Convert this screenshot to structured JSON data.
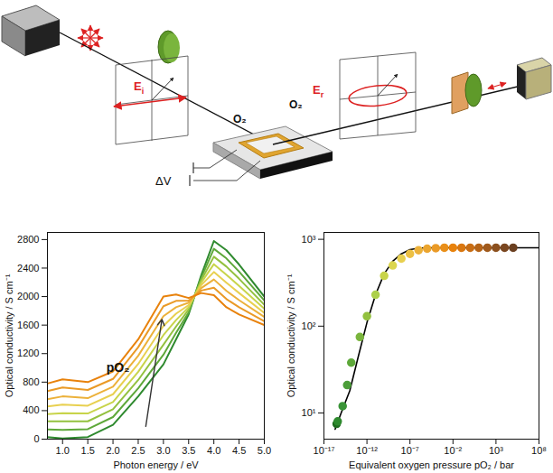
{
  "diagram": {
    "gas": [
      "O₂",
      "O₂"
    ],
    "voltage": "ΔV",
    "incident_field": {
      "text": "E",
      "subscript": "i"
    },
    "reflected_field": {
      "text": "E",
      "subscript": "r"
    }
  },
  "chart_data": [
    {
      "type": "line",
      "x_label": "Photon energy / eV",
      "y_label": "Optical conductivity / S cm⁻¹",
      "x": [
        0.7,
        1.0,
        1.5,
        2.0,
        2.5,
        3.0,
        3.25,
        3.5,
        3.75,
        4.0,
        4.25,
        4.5,
        5.0
      ],
      "series": [
        {
          "color": "#2f8a2f",
          "values": [
            30,
            10,
            30,
            200,
            600,
            1050,
            1400,
            1750,
            2300,
            2780,
            2650,
            2450,
            2000
          ]
        },
        {
          "color": "#5ea83a",
          "values": [
            135,
            130,
            140,
            310,
            715,
            1185,
            1490,
            1780,
            2265,
            2670,
            2535,
            2350,
            1945
          ]
        },
        {
          "color": "#93c13f",
          "values": [
            250,
            250,
            250,
            420,
            830,
            1325,
            1580,
            1820,
            2230,
            2560,
            2420,
            2250,
            1885
          ]
        },
        {
          "color": "#c8d44a",
          "values": [
            350,
            365,
            360,
            520,
            945,
            1460,
            1670,
            1850,
            2195,
            2455,
            2305,
            2150,
            1830
          ]
        },
        {
          "color": "#e8d050",
          "values": [
            460,
            485,
            470,
            630,
            1055,
            1590,
            1760,
            1880,
            2160,
            2345,
            2195,
            2050,
            1770
          ]
        },
        {
          "color": "#ecb13a",
          "values": [
            560,
            600,
            575,
            735,
            1170,
            1725,
            1850,
            1915,
            2120,
            2240,
            2080,
            1950,
            1715
          ]
        },
        {
          "color": "#ea9a26",
          "values": [
            675,
            725,
            690,
            845,
            1290,
            1865,
            1940,
            1945,
            2085,
            2125,
            1965,
            1850,
            1655
          ]
        },
        {
          "color": "#e8820c",
          "values": [
            780,
            840,
            800,
            950,
            1400,
            2000,
            2030,
            1980,
            2050,
            2020,
            1850,
            1750,
            1600
          ]
        }
      ],
      "xlim": [
        0.7,
        5.0
      ],
      "xticks": [
        {
          "value": 1,
          "label": "1.0"
        },
        1.5,
        {
          "value": 2,
          "label": "2.0"
        },
        2.5,
        {
          "value": 3,
          "label": "3.0"
        },
        3.5,
        {
          "value": 4,
          "label": "4.0"
        },
        4.5,
        {
          "value": 5,
          "label": "5.0"
        }
      ],
      "ylim": [
        0,
        2900
      ],
      "yticks": [
        0,
        400,
        800,
        1200,
        1600,
        2000,
        2400,
        2800
      ],
      "annotations": [
        {
          "text": "pO₂",
          "x": 2.1,
          "y": 1000,
          "arrow_from": [
            2.65,
            180
          ],
          "arrow_to": [
            2.97,
            1680
          ]
        }
      ]
    },
    {
      "type": "scatter",
      "log": true,
      "x_label": "Equivalent oxygen pressure pO₂ / bar",
      "y_label": "Optical conductivity / S cm⁻¹",
      "series": [
        {
          "type": "scatter",
          "marker": "circle",
          "x": [
            3e-16,
            4e-16,
            1.5e-15,
            5e-15,
            1.5e-14,
            1.5e-13,
            1e-12,
            1e-11,
            1e-10,
            1e-09,
            1e-08,
            1e-07,
            1e-06,
            1e-05,
            0.0001,
            0.001,
            0.01,
            0.1,
            1,
            10,
            100,
            1000,
            10000,
            100000
          ],
          "values": [
            7.5,
            8,
            12,
            21,
            38,
            75,
            130,
            230,
            380,
            500,
            600,
            680,
            750,
            780,
            790,
            800,
            800,
            800,
            800,
            800,
            800,
            800,
            800,
            800
          ],
          "colors": [
            "#1f6b1f",
            "#2f8a2f",
            "#3a9438",
            "#4c9e3a",
            "#5ea83a",
            "#7ab53d",
            "#93c13f",
            "#add04a",
            "#c8d44a",
            "#dcd64e",
            "#e8d050",
            "#ecc044",
            "#ecb13a",
            "#eba52f",
            "#ea9a26",
            "#e98f1a",
            "#e8820c",
            "#d97710",
            "#c86d14",
            "#b56418",
            "#a05a1c",
            "#8c501e",
            "#7a4720",
            "#6a3f20"
          ]
        },
        {
          "type": "line",
          "color": "#000000",
          "x": [
            2e-16,
            1e-15,
            1e-14,
            1e-13,
            1e-12,
            1e-11,
            1e-10,
            1e-09,
            1e-08,
            1e-07,
            1e-06,
            1e-05,
            0.001,
            100000000.0
          ],
          "values": [
            6.5,
            10,
            18,
            45,
            110,
            230,
            400,
            560,
            680,
            760,
            790,
            800,
            800,
            800
          ]
        }
      ],
      "xlim": [
        1e-17,
        100000000.0
      ],
      "xticks": [
        {
          "value": 1e-17,
          "label": "10⁻¹⁷"
        },
        {
          "value": 1e-12,
          "label": "10⁻¹²"
        },
        {
          "value": 1e-07,
          "label": "10⁻⁷"
        },
        {
          "value": 0.01,
          "label": "10⁻²"
        },
        {
          "value": 1000.0,
          "label": "10³"
        },
        {
          "value": 100000000.0,
          "label": "10⁸"
        }
      ],
      "ylim": [
        5,
        1200
      ],
      "yticks": [
        {
          "value": 10,
          "label": "10¹"
        },
        {
          "value": 100,
          "label": "10²"
        },
        {
          "value": 1000,
          "label": "10³"
        }
      ]
    }
  ]
}
